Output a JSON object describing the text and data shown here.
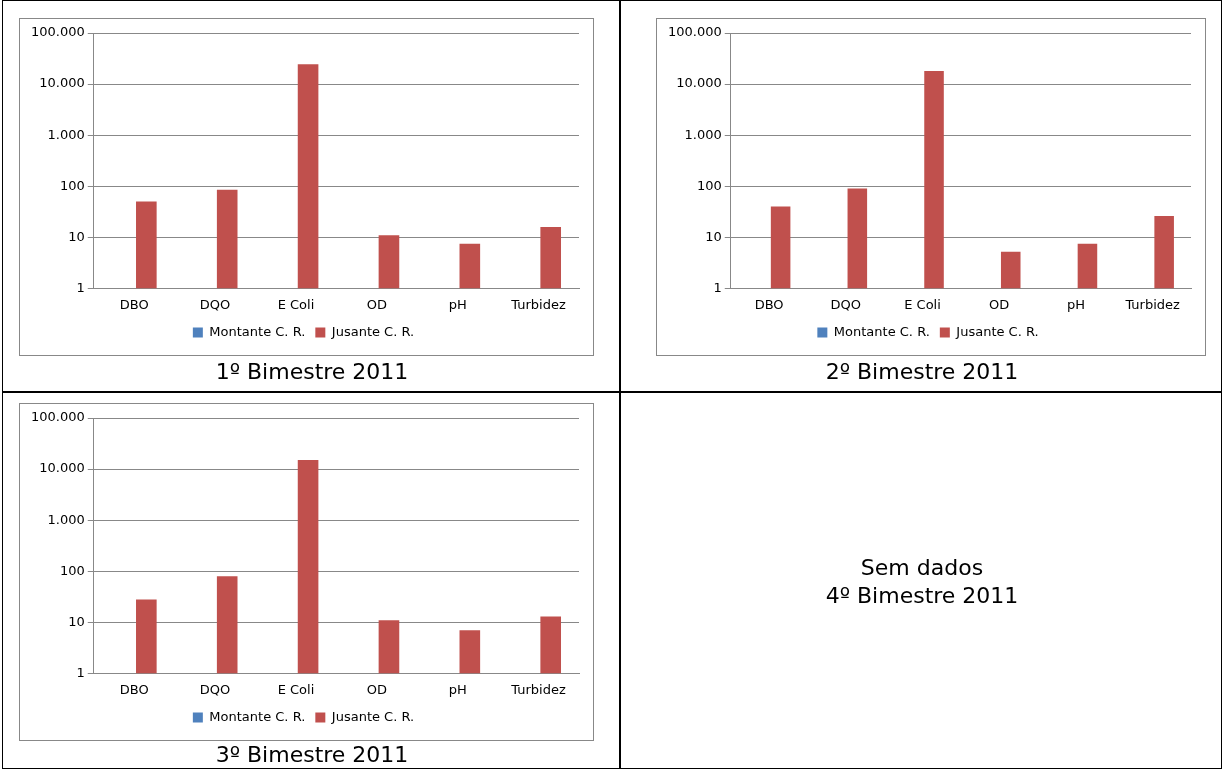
{
  "chart_data": [
    {
      "type": "bar",
      "title": "1º Bimestre 2011",
      "categories": [
        "DBO",
        "DQO",
        "E Coli",
        "OD",
        "pH",
        "Turbidez"
      ],
      "series": [
        {
          "name": "Montante C. R.",
          "color": "#4f81bd",
          "values": [
            null,
            null,
            null,
            null,
            null,
            null
          ]
        },
        {
          "name": "Jusante C. R.",
          "color": "#c0504d",
          "values": [
            50,
            85,
            24500,
            11,
            7.5,
            16
          ]
        }
      ],
      "log": "y",
      "ylim": [
        1,
        100000
      ],
      "yticks": [
        1,
        10,
        100,
        {
          "value": 1000,
          "label": "1.000"
        },
        {
          "value": 10000,
          "label": "10.000"
        },
        {
          "value": 100000,
          "label": "100.000"
        }
      ],
      "grid": "y",
      "legend": "bottom"
    },
    {
      "type": "bar",
      "title": "2º Bimestre 2011",
      "categories": [
        "DBO",
        "DQO",
        "E Coli",
        "OD",
        "pH",
        "Turbidez"
      ],
      "series": [
        {
          "name": "Montante C. R.",
          "color": "#4f81bd",
          "values": [
            null,
            null,
            null,
            null,
            null,
            null
          ]
        },
        {
          "name": "Jusante C. R.",
          "color": "#c0504d",
          "values": [
            40,
            90,
            18000,
            5.2,
            7.5,
            26
          ]
        }
      ],
      "log": "y",
      "ylim": [
        1,
        100000
      ],
      "yticks": [
        1,
        10,
        100,
        {
          "value": 1000,
          "label": "1.000"
        },
        {
          "value": 10000,
          "label": "10.000"
        },
        {
          "value": 100000,
          "label": "100.000"
        }
      ],
      "grid": "y",
      "legend": "bottom"
    },
    {
      "type": "bar",
      "title": "3º Bimestre 2011",
      "categories": [
        "DBO",
        "DQO",
        "E Coli",
        "OD",
        "pH",
        "Turbidez"
      ],
      "series": [
        {
          "name": "Montante C. R.",
          "color": "#4f81bd",
          "values": [
            null,
            null,
            null,
            null,
            null,
            null
          ]
        },
        {
          "name": "Jusante C. R.",
          "color": "#c0504d",
          "values": [
            28,
            80,
            15000,
            11,
            7,
            13
          ]
        }
      ],
      "log": "y",
      "ylim": [
        1,
        100000
      ],
      "yticks": [
        1,
        10,
        100,
        {
          "value": 1000,
          "label": "1.000"
        },
        {
          "value": 10000,
          "label": "10.000"
        },
        {
          "value": 100000,
          "label": "100.000"
        }
      ],
      "grid": "y",
      "legend": "bottom"
    },
    {
      "type": "other",
      "title": "4º Bimestre 2011",
      "annotations": [
        "Sem dados"
      ]
    }
  ]
}
